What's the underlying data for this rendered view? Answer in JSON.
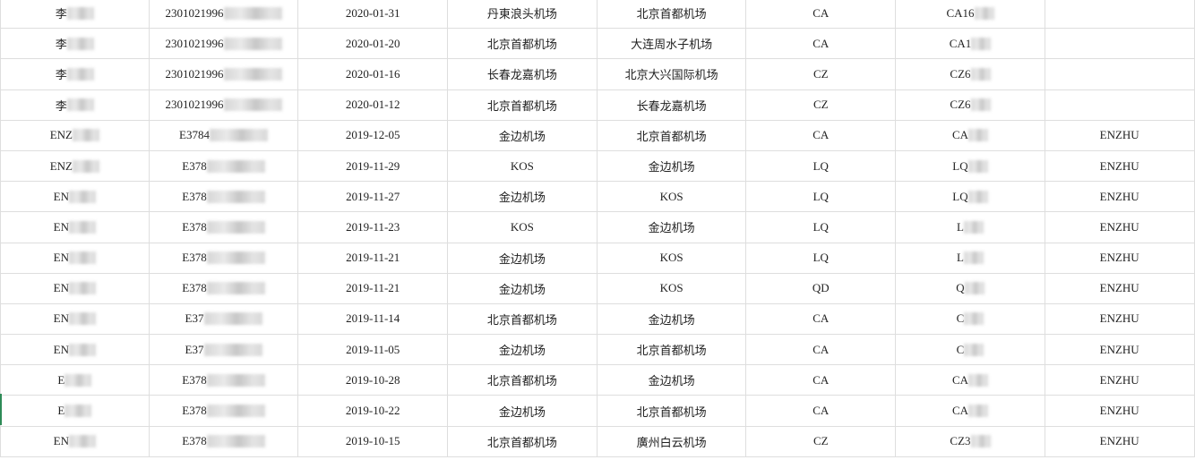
{
  "rows": [
    {
      "name": "李",
      "id": "2301021996",
      "date": "2020-01-31",
      "from": "丹東浪头机场",
      "to": "北京首都机场",
      "airline": "CA",
      "flight": "CA16",
      "pinyin": ""
    },
    {
      "name": "李",
      "id": "2301021996",
      "date": "2020-01-20",
      "from": "北京首都机场",
      "to": "大连周水子机场",
      "airline": "CA",
      "flight": "CA1",
      "pinyin": ""
    },
    {
      "name": "李",
      "id": "2301021996",
      "date": "2020-01-16",
      "from": "长春龙嘉机场",
      "to": "北京大兴国际机场",
      "airline": "CZ",
      "flight": "CZ6",
      "pinyin": ""
    },
    {
      "name": "李",
      "id": "2301021996",
      "date": "2020-01-12",
      "from": "北京首都机场",
      "to": "长春龙嘉机场",
      "airline": "CZ",
      "flight": "CZ6",
      "pinyin": ""
    },
    {
      "name": "ENZ",
      "id": "E3784",
      "date": "2019-12-05",
      "from": "金边机场",
      "to": "北京首都机场",
      "airline": "CA",
      "flight": "CA",
      "pinyin": "ENZHU"
    },
    {
      "name": "ENZ",
      "id": "E378",
      "date": "2019-11-29",
      "from": "KOS",
      "to": "金边机场",
      "airline": "LQ",
      "flight": "LQ",
      "pinyin": "ENZHU"
    },
    {
      "name": "EN",
      "id": "E378",
      "date": "2019-11-27",
      "from": "金边机场",
      "to": "KOS",
      "airline": "LQ",
      "flight": "LQ",
      "pinyin": "ENZHU"
    },
    {
      "name": "EN",
      "id": "E378",
      "date": "2019-11-23",
      "from": "KOS",
      "to": "金边机场",
      "airline": "LQ",
      "flight": "L",
      "pinyin": "ENZHU"
    },
    {
      "name": "EN",
      "id": "E378",
      "date": "2019-11-21",
      "from": "金边机场",
      "to": "KOS",
      "airline": "LQ",
      "flight": "L",
      "pinyin": "ENZHU"
    },
    {
      "name": "EN",
      "id": "E378",
      "date": "2019-11-21",
      "from": "金边机场",
      "to": "KOS",
      "airline": "QD",
      "flight": "Q",
      "pinyin": "ENZHU"
    },
    {
      "name": "EN",
      "id": "E37",
      "date": "2019-11-14",
      "from": "北京首都机场",
      "to": "金边机场",
      "airline": "CA",
      "flight": "C",
      "pinyin": "ENZHU"
    },
    {
      "name": "EN",
      "id": "E37",
      "date": "2019-11-05",
      "from": "金边机场",
      "to": "北京首都机场",
      "airline": "CA",
      "flight": "C",
      "pinyin": "ENZHU"
    },
    {
      "name": "E",
      "id": "E378",
      "date": "2019-10-28",
      "from": "北京首都机场",
      "to": "金边机场",
      "airline": "CA",
      "flight": "CA",
      "pinyin": "ENZHU"
    },
    {
      "name": "E",
      "id": "E378",
      "date": "2019-10-22",
      "from": "金边机场",
      "to": "北京首都机场",
      "airline": "CA",
      "flight": "CA",
      "pinyin": "ENZHU"
    },
    {
      "name": "EN",
      "id": "E378",
      "date": "2019-10-15",
      "from": "北京首都机场",
      "to": "廣州白云机场",
      "airline": "CZ",
      "flight": "CZ3",
      "pinyin": "ENZHU"
    }
  ]
}
